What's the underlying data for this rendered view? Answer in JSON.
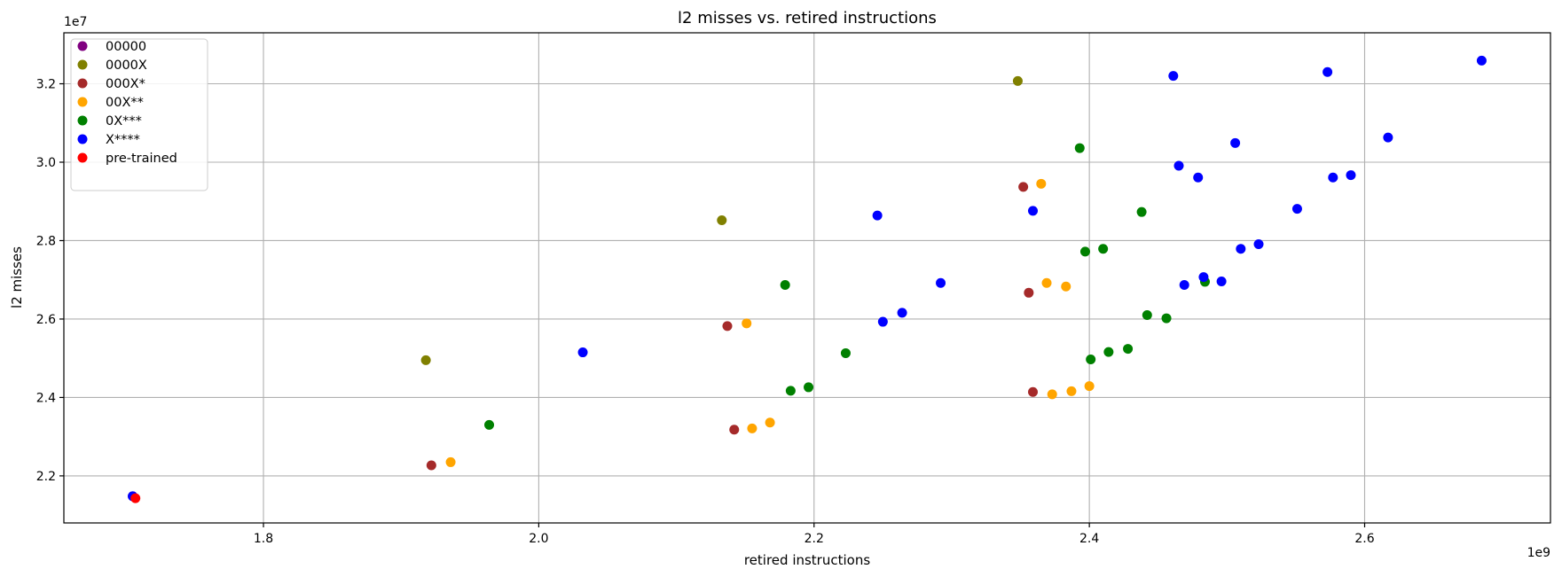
{
  "chart_data": {
    "type": "scatter",
    "title": "l2 misses vs. retired instructions",
    "xlabel": "retired instructions",
    "ylabel": "l2 misses",
    "x_offset_label": "1e9",
    "y_offset_label": "1e7",
    "xlim": [
      1.655,
      2.735
    ],
    "ylim": [
      2.08,
      3.33
    ],
    "xticks": [
      1.8,
      2.0,
      2.2,
      2.4,
      2.6
    ],
    "yticks": [
      2.2,
      2.4,
      2.6,
      2.8,
      3.0,
      3.2
    ],
    "xtick_labels": [
      "1.8",
      "2.0",
      "2.2",
      "2.4",
      "2.6"
    ],
    "ytick_labels": [
      "2.2",
      "2.4",
      "2.6",
      "2.8",
      "3.0",
      "3.2"
    ],
    "grid": true,
    "legend_position": "upper-left",
    "series": [
      {
        "name": "00000",
        "color": "#800080",
        "points": [
          [
            1.705,
            2.148
          ]
        ]
      },
      {
        "name": "0000X",
        "color": "#808000",
        "points": [
          [
            1.918,
            2.495
          ],
          [
            2.133,
            2.852
          ],
          [
            2.348,
            3.207
          ]
        ]
      },
      {
        "name": "000X*",
        "color": "#a52a2a",
        "points": [
          [
            1.922,
            2.227
          ],
          [
            2.137,
            2.582
          ],
          [
            2.142,
            2.318
          ],
          [
            2.352,
            2.937
          ],
          [
            2.356,
            2.667
          ],
          [
            2.359,
            2.414
          ]
        ]
      },
      {
        "name": "00X**",
        "color": "#ffa500",
        "points": [
          [
            1.936,
            2.235
          ],
          [
            2.151,
            2.589
          ],
          [
            2.155,
            2.321
          ],
          [
            2.168,
            2.336
          ],
          [
            2.365,
            2.945
          ],
          [
            2.369,
            2.692
          ],
          [
            2.373,
            2.408
          ],
          [
            2.383,
            2.683
          ],
          [
            2.387,
            2.416
          ],
          [
            2.4,
            2.429
          ]
        ]
      },
      {
        "name": "0X***",
        "color": "#008000",
        "points": [
          [
            1.964,
            2.33
          ],
          [
            2.179,
            2.687
          ],
          [
            2.183,
            2.417
          ],
          [
            2.196,
            2.426
          ],
          [
            2.223,
            2.513
          ],
          [
            2.393,
            3.036
          ],
          [
            2.397,
            2.772
          ],
          [
            2.401,
            2.497
          ],
          [
            2.41,
            2.779
          ],
          [
            2.414,
            2.516
          ],
          [
            2.428,
            2.524
          ],
          [
            2.438,
            2.873
          ],
          [
            2.442,
            2.61
          ],
          [
            2.456,
            2.602
          ],
          [
            2.484,
            2.695
          ]
        ]
      },
      {
        "name": "X****",
        "color": "#0000ff",
        "points": [
          [
            1.705,
            2.148
          ],
          [
            2.032,
            2.515
          ],
          [
            2.246,
            2.864
          ],
          [
            2.25,
            2.593
          ],
          [
            2.264,
            2.616
          ],
          [
            2.292,
            2.692
          ],
          [
            2.359,
            2.876
          ],
          [
            2.461,
            3.22
          ],
          [
            2.465,
            2.991
          ],
          [
            2.469,
            2.687
          ],
          [
            2.479,
            2.961
          ],
          [
            2.483,
            2.707
          ],
          [
            2.496,
            2.696
          ],
          [
            2.506,
            3.049
          ],
          [
            2.51,
            2.779
          ],
          [
            2.523,
            2.791
          ],
          [
            2.551,
            2.881
          ],
          [
            2.573,
            3.23
          ],
          [
            2.577,
            2.961
          ],
          [
            2.59,
            2.967
          ],
          [
            2.617,
            3.063
          ],
          [
            2.685,
            3.259
          ]
        ]
      },
      {
        "name": "pre-trained",
        "color": "#ff0000",
        "points": [
          [
            1.707,
            2.143
          ]
        ]
      }
    ]
  }
}
